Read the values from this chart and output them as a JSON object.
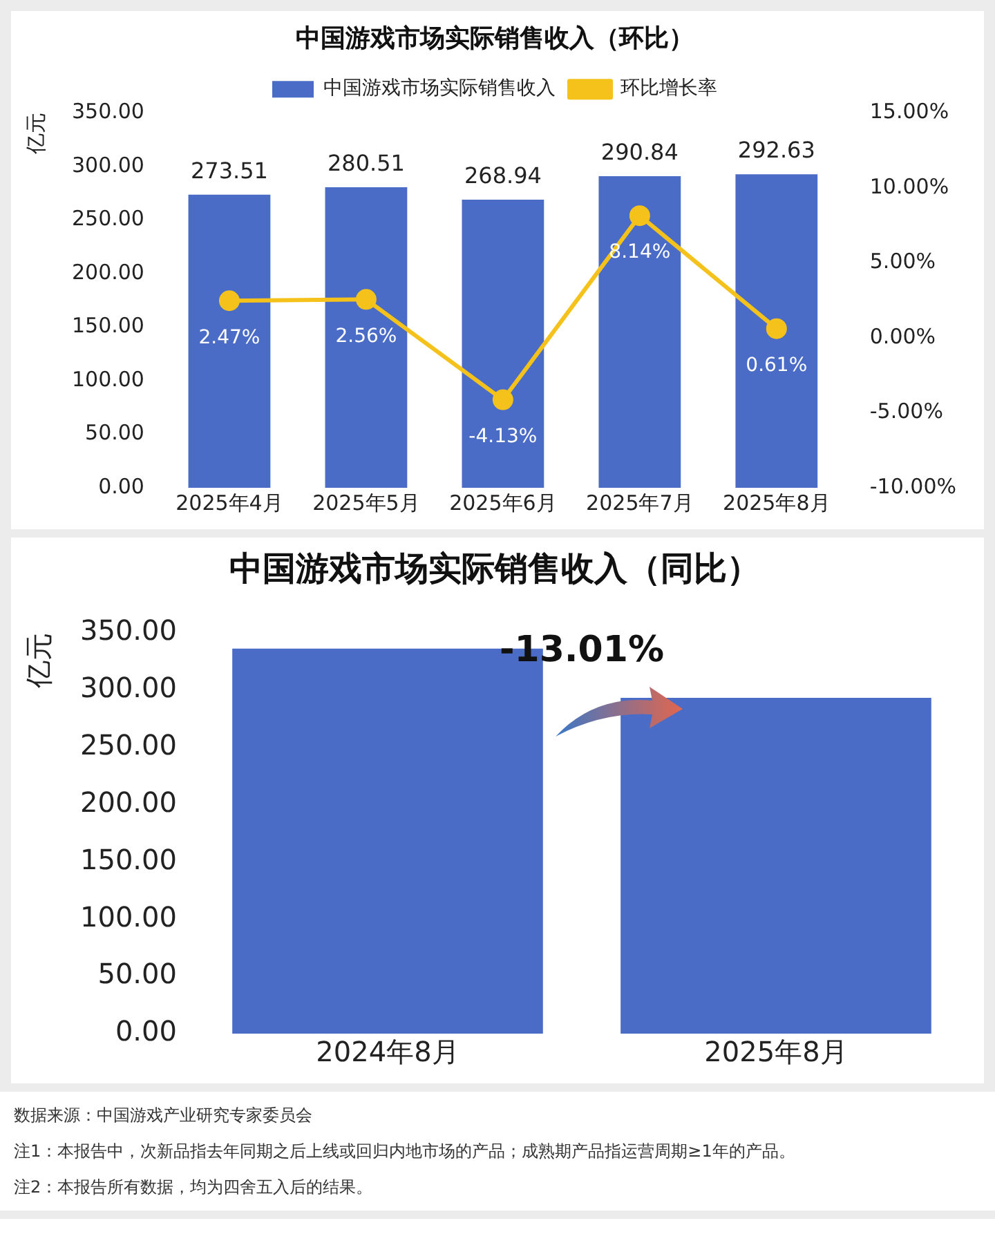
{
  "chart_data": [
    {
      "type": "bar",
      "title": "中国游戏市场实际销售收入（环比）",
      "ylabel": "亿元",
      "categories": [
        "2025年4月",
        "2025年5月",
        "2025年6月",
        "2025年7月",
        "2025年8月"
      ],
      "series": [
        {
          "name": "中国游戏市场实际销售收入",
          "type": "bar",
          "color": "#4a6cc6",
          "values": [
            273.51,
            280.51,
            268.94,
            290.84,
            292.63
          ],
          "value_labels": [
            "273.51",
            "280.51",
            "268.94",
            "290.84",
            "292.63"
          ]
        },
        {
          "name": "环比增长率",
          "type": "line",
          "axis": "y2",
          "color": "#f5c21b",
          "marker": "circle",
          "values": [
            2.47,
            2.56,
            -4.13,
            8.14,
            0.61
          ],
          "value_labels": [
            "2.47%",
            "2.56%",
            "-4.13%",
            "8.14%",
            "0.61%"
          ]
        }
      ],
      "ylim": [
        0,
        350
      ],
      "yticks": [
        {
          "value": 0,
          "label": "0.00"
        },
        {
          "value": 50,
          "label": "50.00"
        },
        {
          "value": 100,
          "label": "100.00"
        },
        {
          "value": 150,
          "label": "150.00"
        },
        {
          "value": 200,
          "label": "200.00"
        },
        {
          "value": 250,
          "label": "250.00"
        },
        {
          "value": 300,
          "label": "300.00"
        },
        {
          "value": 350,
          "label": "350.00"
        }
      ],
      "y2lim": [
        -10,
        15
      ],
      "y2ticks": [
        {
          "value": -10,
          "label": "-10.00%"
        },
        {
          "value": -5,
          "label": "-5.00%"
        },
        {
          "value": 0,
          "label": "0.00%"
        },
        {
          "value": 5,
          "label": "5.00%"
        },
        {
          "value": 10,
          "label": "10.00%"
        },
        {
          "value": 15,
          "label": "15.00%"
        }
      ],
      "grid": false,
      "legend": "top"
    },
    {
      "type": "bar",
      "title": "中国游戏市场实际销售收入（同比）",
      "ylabel": "亿元",
      "categories": [
        "2024年8月",
        "2025年8月"
      ],
      "values": [
        336,
        293
      ],
      "color": "#4a6cc6",
      "ylim": [
        0,
        350
      ],
      "yticks": [
        {
          "value": 0,
          "label": "0.00"
        },
        {
          "value": 50,
          "label": "50.00"
        },
        {
          "value": 100,
          "label": "100.00"
        },
        {
          "value": 150,
          "label": "150.00"
        },
        {
          "value": 200,
          "label": "200.00"
        },
        {
          "value": 250,
          "label": "250.00"
        },
        {
          "value": 300,
          "label": "300.00"
        },
        {
          "value": 350,
          "label": "350.00"
        }
      ],
      "grid": false,
      "annotations": [
        "-13.01%",
        "数据来源：中国游戏产业研究专家委员会",
        "注1：本报告中，次新品指去年同期之后上线或回归内地市场的产品；成熟期产品指运营周期≥1年的产品。",
        "注2：本报告所有数据，均为四舍五入后的结果。"
      ]
    }
  ]
}
